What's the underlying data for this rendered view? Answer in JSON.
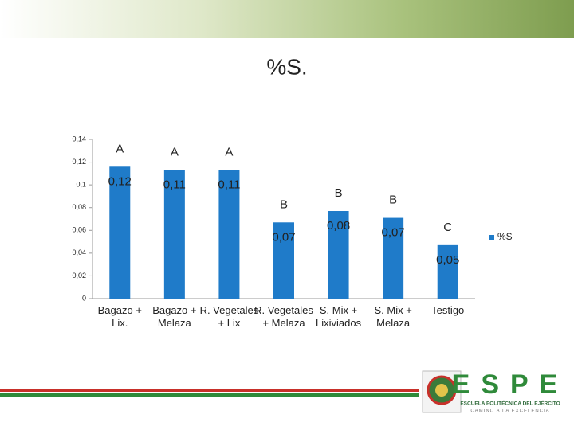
{
  "chart_data": {
    "type": "bar",
    "title": "%S.",
    "categories": [
      "Bagazo + Lix.",
      "Bagazo + Melaza",
      "R. Vegetales + Lix",
      "R. Vegetales + Melaza",
      "S. Mix + Lixiviados",
      "S. Mix + Melaza",
      "Testigo"
    ],
    "series": [
      {
        "name": "%S",
        "color": "#1f7bc9",
        "values": [
          0.116,
          0.113,
          0.113,
          0.067,
          0.077,
          0.071,
          0.047
        ],
        "value_labels": [
          "0,12",
          "0,11",
          "0,11",
          "0,07",
          "0,08",
          "0,07",
          "0,05"
        ]
      }
    ],
    "annotations": [
      "A",
      "A",
      "A",
      "B",
      "B",
      "B",
      "C"
    ],
    "ylim": [
      0,
      0.14
    ],
    "yticks": [
      0,
      {
        "value": 0.02,
        "label": "0,02"
      },
      {
        "value": 0.04,
        "label": "0,04"
      },
      {
        "value": 0.06,
        "label": "0,06"
      },
      {
        "value": 0.08,
        "label": "0,08"
      },
      {
        "value": 0.1,
        "label": "0,1"
      },
      {
        "value": 0.12,
        "label": "0,12"
      },
      {
        "value": 0.14,
        "label": "0,14"
      }
    ],
    "grid": false,
    "legend": "right"
  },
  "logo": {
    "name": "ESPE",
    "school": "ESCUELA POLITÉCNICA DEL EJÉRCITO",
    "motto": "CAMINO A LA EXCELENCIA"
  }
}
